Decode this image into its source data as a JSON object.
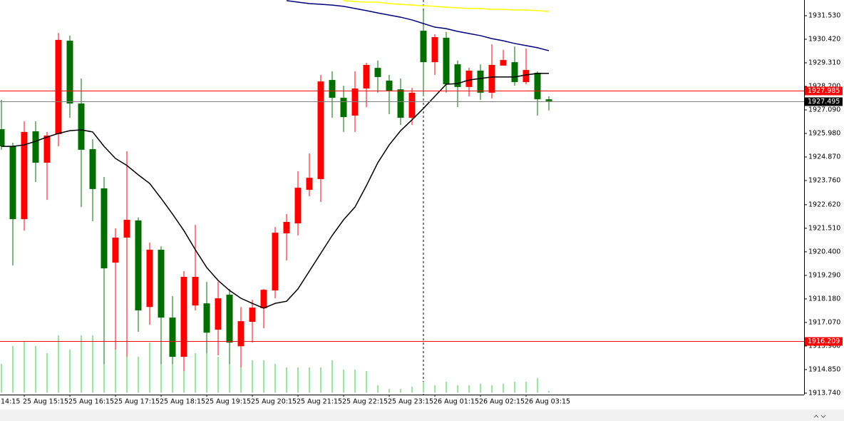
{
  "chart_data": {
    "type": "candlestick",
    "left_axis_label": "14:15",
    "categories": [
      null,
      null,
      "25 Aug 15:15",
      null,
      null,
      null,
      "25 Aug 16:15",
      null,
      null,
      null,
      "25 Aug 17:15",
      null,
      null,
      null,
      "25 Aug 18:15",
      null,
      null,
      null,
      "25 Aug 19:15",
      null,
      null,
      null,
      "25 Aug 20:15",
      null,
      null,
      null,
      "25 Aug 21:15",
      null,
      null,
      null,
      "25 Aug 22:15",
      null,
      null,
      null,
      "25 Aug 23:15",
      null,
      null,
      null,
      "26 Aug 01:15",
      null,
      null,
      null,
      "26 Aug 02:15",
      null,
      null,
      null,
      "26 Aug 03:15",
      null,
      null
    ],
    "open": [
      1926.18,
      1925.37,
      1921.94,
      1926.08,
      1924.6,
      1925.95,
      1930.35,
      1927.39,
      1925.24,
      1923.39,
      1919.89,
      1921.07,
      1921.88,
      1917.8,
      1920.5,
      1917.3,
      1915.45,
      1917.87,
      1917.97,
      1916.73,
      1918.38,
      1915.95,
      1917.1,
      1917.74,
      1918.58,
      1921.27,
      1921.74,
      1923.32,
      1923.83,
      1928.5,
      1927.66,
      1926.82,
      1928.1,
      1929.07,
      1928.47,
      1928.06,
      1926.72,
      1930.82,
      1929.34,
      1930.49,
      1929.24,
      1928.17,
      1928.94,
      1927.9,
      1929.18,
      1929.34,
      1928.4,
      1928.84,
      1927.59
    ],
    "high": [
      1927.56,
      1925.54,
      1926.55,
      1926.55,
      1926.05,
      1930.72,
      1930.59,
      1928.57,
      1925.71,
      1923.93,
      1921.51,
      1925.14,
      1922.01,
      1920.83,
      1920.66,
      1918.31,
      1919.49,
      1921.67,
      1918.98,
      1918.98,
      1918.65,
      1917.8,
      1918.14,
      1918.65,
      1921.57,
      1922.18,
      1924.2,
      1925.04,
      1928.74,
      1928.91,
      1928.23,
      1928.91,
      1929.31,
      1929.41,
      1928.74,
      1928.57,
      1928.13,
      1931.77,
      1930.66,
      1930.76,
      1929.41,
      1929.07,
      1929.24,
      1930.18,
      1929.92,
      1930.08,
      1929.98,
      1928.91,
      1927.73
    ],
    "low": [
      1925.21,
      1919.76,
      1921.4,
      1923.69,
      1922.85,
      1925.37,
      1926.72,
      1922.51,
      1921.84,
      1915.11,
      1915.79,
      1915.45,
      1916.63,
      1916.96,
      1915.11,
      1915.11,
      1914.78,
      1917.64,
      1915.62,
      1915.52,
      1915.11,
      1914.95,
      1916.12,
      1916.8,
      1918.21,
      1919.99,
      1921.17,
      1923.02,
      1922.75,
      1926.72,
      1926.05,
      1926.05,
      1927.22,
      1927.9,
      1926.89,
      1926.38,
      1926.38,
      1927.73,
      1928.74,
      1927.9,
      1927.22,
      1927.73,
      1927.56,
      1927.63,
      1929.18,
      1928.23,
      1928.3,
      1926.82,
      1927.06
    ],
    "close": [
      1925.37,
      1921.94,
      1926.05,
      1924.6,
      1925.88,
      1930.39,
      1927.39,
      1925.21,
      1923.36,
      1919.62,
      1921.07,
      1921.91,
      1917.64,
      1920.5,
      1917.3,
      1915.45,
      1919.22,
      1919.22,
      1916.59,
      1918.21,
      1916.12,
      1917.13,
      1917.77,
      1918.61,
      1921.3,
      1921.81,
      1923.42,
      1923.89,
      1928.43,
      1927.66,
      1926.75,
      1928.1,
      1929.21,
      1928.64,
      1928.0,
      1926.72,
      1927.9,
      1929.34,
      1930.52,
      1928.3,
      1928.17,
      1928.94,
      1927.9,
      1929.21,
      1929.44,
      1928.4,
      1928.97,
      1927.59,
      1927.5
    ],
    "up_color": "#ff0000",
    "down_color": "#006f00",
    "moving_averages": [
      {
        "color": "#000000",
        "values": [
          1925.37,
          1925.37,
          1925.44,
          1925.61,
          1925.81,
          1925.98,
          1926.11,
          1926.15,
          1926.05,
          1925.37,
          1924.8,
          1924.47,
          1924.03,
          1923.62,
          1922.92,
          1922.18,
          1921.4,
          1920.5,
          1919.66,
          1919.05,
          1918.58,
          1918.21,
          1917.97,
          1917.74,
          1917.97,
          1918.07,
          1918.65,
          1919.49,
          1920.33,
          1921.17,
          1921.91,
          1922.51,
          1923.52,
          1924.6,
          1925.44,
          1926.11,
          1926.62,
          1927.16,
          1927.73,
          1928.3,
          1928.33,
          1928.5,
          1928.57,
          1928.64,
          1928.64,
          1928.64,
          1928.74,
          1928.81,
          1928.81
        ]
      },
      {
        "color": "#00007f",
        "values": [
          null,
          null,
          null,
          null,
          null,
          null,
          null,
          null,
          null,
          null,
          null,
          null,
          null,
          null,
          null,
          null,
          null,
          null,
          null,
          null,
          null,
          null,
          null,
          null,
          null,
          1932.24,
          1932.17,
          1932.1,
          1932.07,
          1932.03,
          1931.97,
          1931.87,
          1931.77,
          1931.66,
          1931.56,
          1931.46,
          1931.33,
          1931.16,
          1930.99,
          1930.92,
          1930.79,
          1930.69,
          1930.59,
          1930.45,
          1930.35,
          1930.22,
          1930.12,
          1930.02,
          1929.88
        ]
      },
      {
        "color": "#ffff00",
        "values": [
          null,
          null,
          null,
          null,
          null,
          null,
          null,
          null,
          null,
          null,
          null,
          null,
          null,
          null,
          null,
          null,
          null,
          null,
          null,
          null,
          null,
          null,
          null,
          null,
          null,
          null,
          null,
          null,
          null,
          null,
          1932.24,
          1932.2,
          1932.17,
          1932.17,
          1932.1,
          1932.07,
          1932.03,
          1932.0,
          1931.97,
          1931.93,
          1931.9,
          1931.87,
          1931.87,
          1931.83,
          1931.83,
          1931.8,
          1931.8,
          1931.77,
          1931.73
        ]
      }
    ],
    "volume": {
      "color": "#33cc33",
      "values": [
        40,
        65,
        72,
        65,
        55,
        80,
        60,
        80,
        80,
        65,
        70,
        65,
        50,
        70,
        55,
        60,
        50,
        55,
        55,
        50,
        50,
        45,
        45,
        45,
        40,
        35,
        35,
        35,
        35,
        45,
        32,
        32,
        30,
        10,
        5,
        5,
        8,
        15,
        10,
        15,
        10,
        10,
        12,
        10,
        12,
        15,
        15,
        20,
        2
      ]
    },
    "price_lines": [
      {
        "value": 1927.985,
        "color": "#ff0000"
      },
      {
        "value": 1927.495,
        "color": "#808080"
      },
      {
        "value": 1916.209,
        "color": "#ff0000"
      }
    ],
    "ylim": [
      1913.67,
      1932.27
    ],
    "yticks": [
      {
        "value": 1913.74,
        "label": "1913.740"
      },
      {
        "value": 1914.85,
        "label": "1914.850"
      },
      {
        "value": 1915.96,
        "label": "1915.960"
      },
      {
        "value": 1917.07,
        "label": "1917.070"
      },
      {
        "value": 1918.18,
        "label": "1918.180"
      },
      {
        "value": 1919.29,
        "label": "1919.290"
      },
      {
        "value": 1920.4,
        "label": "1920.400"
      },
      {
        "value": 1921.51,
        "label": "1921.510"
      },
      {
        "value": 1922.62,
        "label": "1922.620"
      },
      {
        "value": 1923.76,
        "label": "1923.760"
      },
      {
        "value": 1924.87,
        "label": "1924.870"
      },
      {
        "value": 1925.98,
        "label": "1925.980"
      },
      {
        "value": 1927.09,
        "label": "1927.090"
      },
      {
        "value": 1928.2,
        "label": "1928.200"
      },
      {
        "value": 1929.31,
        "label": "1929.310"
      },
      {
        "value": 1930.42,
        "label": "1930.420"
      },
      {
        "value": 1931.53,
        "label": "1931.530"
      }
    ]
  }
}
